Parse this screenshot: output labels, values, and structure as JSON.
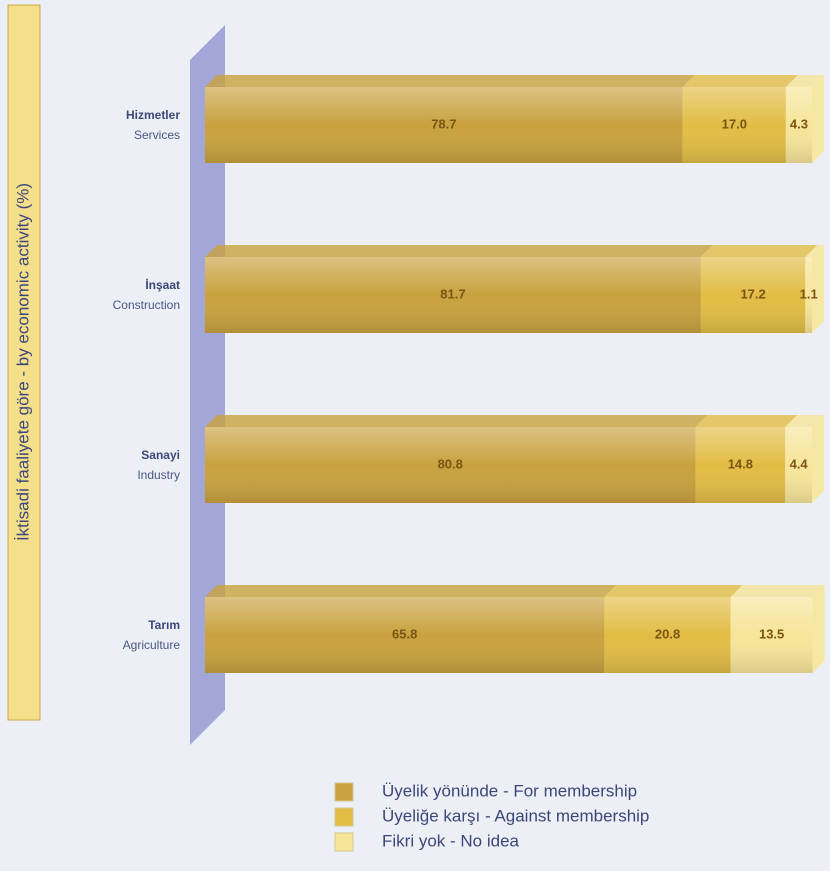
{
  "chart_data": {
    "type": "stacked_bar_horizontal",
    "y_axis_title": "İktisadi faaliyete göre - by economic activity (%)",
    "categories": [
      [
        "Hizmetler",
        "Services"
      ],
      [
        "İnşaat",
        "Construction"
      ],
      [
        "Sanayi",
        "Industry"
      ],
      [
        "Tarım",
        "Agriculture"
      ]
    ],
    "xlim": [
      0,
      100
    ],
    "series": [
      {
        "name": "Üyelik yönünde - For membership",
        "color": "#c9a23f",
        "values": [
          78.7,
          81.7,
          80.8,
          65.8
        ]
      },
      {
        "name": "Üyeliğe karşı - Against membership",
        "color": "#e2bd45",
        "values": [
          17.0,
          17.2,
          14.8,
          20.8
        ],
        "value_labels": [
          "17.0",
          "17.2",
          "14.8",
          "20.8"
        ]
      },
      {
        "name": "Fikri yok - No idea",
        "color": "#f7e59a",
        "values": [
          4.3,
          1.1,
          4.4,
          13.5
        ]
      }
    ]
  }
}
